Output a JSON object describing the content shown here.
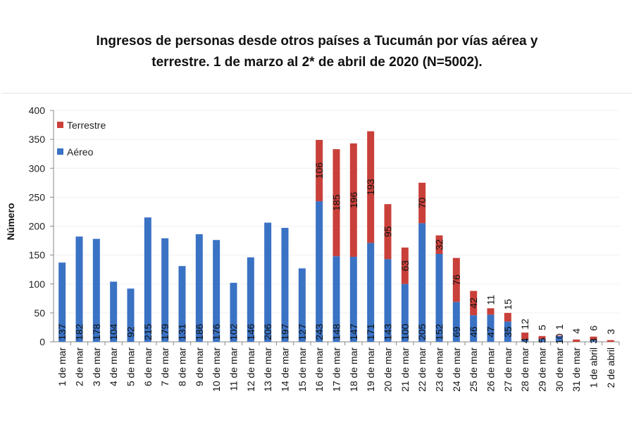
{
  "chart_data": {
    "type": "bar",
    "stacked": true,
    "title_line1": "Ingresos de personas desde otros países a Tucumán por vías aérea y",
    "title_line2": "terrestre. 1 de marzo al 2* de abril de 2020 (N=5002).",
    "xlabel": "",
    "ylabel": "Número",
    "ylim": [
      0,
      400
    ],
    "yticks": [
      0,
      50,
      100,
      150,
      200,
      250,
      300,
      350,
      400
    ],
    "legend_position": "top-left",
    "categories": [
      "1 de mar",
      "2 de mar",
      "3 de mar",
      "4 de mar",
      "5 de mar",
      "6 de mar",
      "7 de mar",
      "8 de mar",
      "9 de mar",
      "10 de mar",
      "11 de mar",
      "12 de mar",
      "13 de mar",
      "14 de mar",
      "15 de mar",
      "16 de mar",
      "17 de mar",
      "18 de mar",
      "19 de mar",
      "20 de mar",
      "21 de mar",
      "22 de mar",
      "23 de mar",
      "24 de mar",
      "25 de mar",
      "26 de mar",
      "27 de mar",
      "28 de mar",
      "29 de mar",
      "30 de mar",
      "31 de mar",
      "1 de abril",
      "2 de abril"
    ],
    "series": [
      {
        "name": "Aéreo",
        "color": "#3a72c4",
        "values": [
          137,
          182,
          178,
          104,
          92,
          215,
          179,
          131,
          186,
          176,
          102,
          146,
          206,
          197,
          127,
          243,
          148,
          147,
          171,
          143,
          100,
          205,
          152,
          69,
          46,
          47,
          35,
          4,
          5,
          10,
          0,
          3,
          0
        ]
      },
      {
        "name": "Terrestre",
        "color": "#c9403a",
        "values": [
          0,
          0,
          0,
          0,
          0,
          0,
          0,
          0,
          0,
          0,
          0,
          0,
          0,
          0,
          0,
          106,
          185,
          196,
          193,
          95,
          63,
          70,
          32,
          76,
          42,
          11,
          15,
          12,
          5,
          1,
          4,
          6,
          3
        ]
      }
    ]
  }
}
